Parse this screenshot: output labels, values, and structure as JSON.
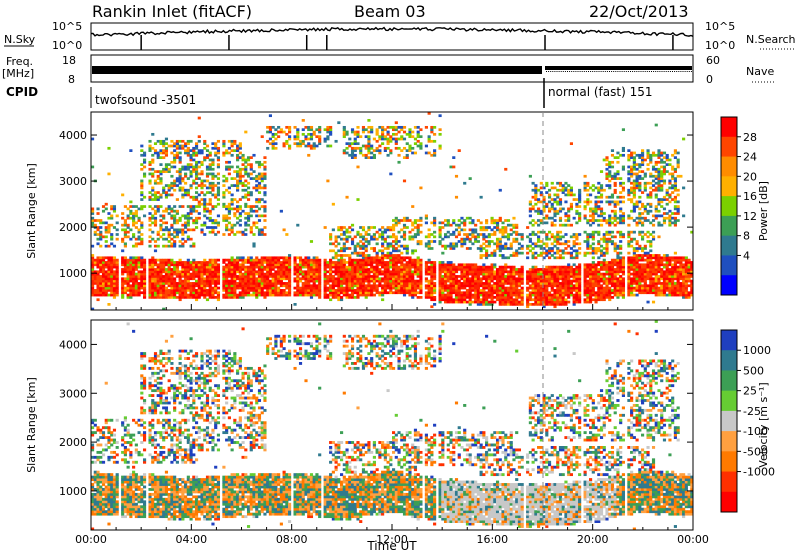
{
  "header": {
    "station": "Rankin Inlet (fitACF)",
    "beam": "Beam 03",
    "date": "22/Oct/2013"
  },
  "strips": {
    "nsky_label": "N.Sky",
    "nsky_ticks": [
      "10^5",
      "10^0"
    ],
    "nsearch_label": "N.Search",
    "freq_label_1": "Freq.",
    "freq_label_2": "[MHz]",
    "freq_ticks": [
      "18",
      "8"
    ],
    "nave_label": "Nave",
    "nave_ticks": [
      "60",
      "0"
    ],
    "cpid_label": "CPID",
    "cpid_segments": [
      "twofsound -3501",
      "normal (fast) 151"
    ]
  },
  "chart_data": [
    {
      "type": "heatmap",
      "title": "",
      "xlabel": "",
      "ylabel": "Slant Range [km]",
      "x_ticks": [
        "00:00",
        "04:00",
        "08:00",
        "12:00",
        "16:00",
        "20:00",
        "00:00"
      ],
      "y_ticks": [
        1000,
        2000,
        3000,
        4000
      ],
      "ylim": [
        200,
        4500
      ],
      "colorbar": {
        "label": "Power [dB]",
        "ticks": [
          "28",
          "24",
          "20",
          "16",
          "12",
          "8",
          "4"
        ],
        "colors": [
          "#ff0000",
          "#ff4500",
          "#ff8c00",
          "#ffb000",
          "#7bd000",
          "#3c9f55",
          "#2f7a8f",
          "#1f4fbf",
          "#0000ff"
        ]
      },
      "series": [
        {
          "hours": [
            0,
            2,
            4,
            6,
            8,
            10,
            12,
            14,
            16,
            18,
            20,
            22,
            24
          ],
          "main_band_center_km": [
            950,
            900,
            850,
            900,
            950,
            850,
            1000,
            800,
            750,
            700,
            800,
            1000,
            900
          ]
        }
      ]
    },
    {
      "type": "heatmap",
      "title": "",
      "xlabel": "Time UT",
      "ylabel": "Slant Range [km]",
      "x_ticks": [
        "00:00",
        "04:00",
        "08:00",
        "12:00",
        "16:00",
        "20:00",
        "00:00"
      ],
      "y_ticks": [
        1000,
        2000,
        3000,
        4000
      ],
      "ylim": [
        200,
        4500
      ],
      "colorbar": {
        "label": "Velocity [m s⁻¹]",
        "ticks": [
          "1000",
          "500",
          "25",
          "-25",
          "-100",
          "-500",
          "-1000"
        ],
        "colors": [
          "#1f3fbf",
          "#2f7a8f",
          "#3c9f55",
          "#66cc33",
          "#c8c8c8",
          "#ffa040",
          "#ff7a00",
          "#ff3000",
          "#ff0000"
        ]
      }
    }
  ]
}
